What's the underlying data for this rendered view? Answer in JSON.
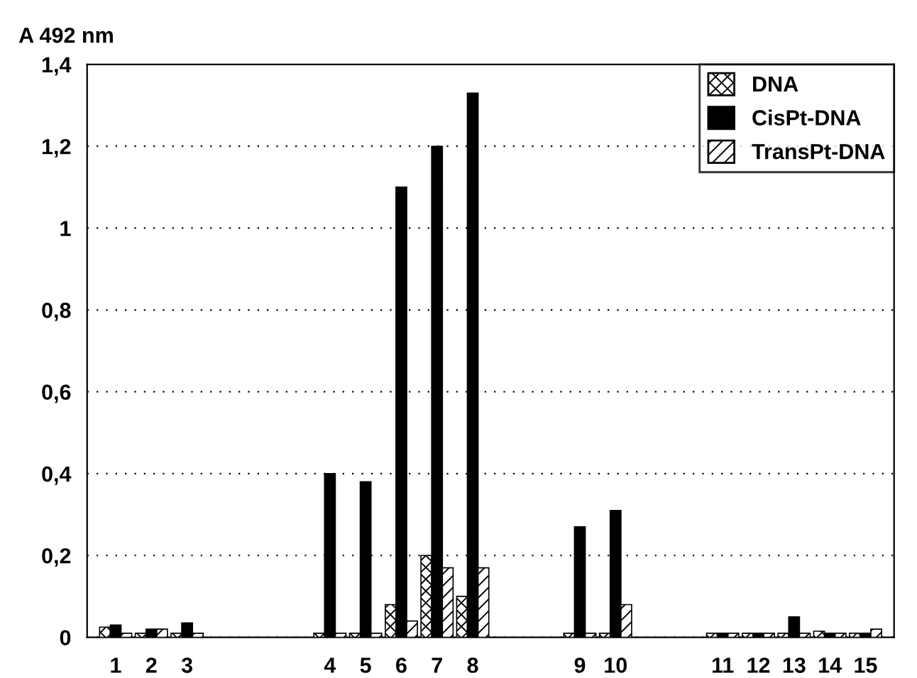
{
  "chart_data": {
    "type": "bar",
    "ylabel": "A 492 nm",
    "categories": [
      "1",
      "2",
      "3",
      null,
      null,
      null,
      "4",
      "5",
      "6",
      "7",
      "8",
      null,
      null,
      "9",
      "10",
      null,
      null,
      "11",
      "12",
      "13",
      "14",
      "15"
    ],
    "series": [
      {
        "name": "DNA",
        "color": "#ffffff",
        "values": [
          0.025,
          0.01,
          0.01,
          null,
          null,
          null,
          0.01,
          0.01,
          0.08,
          0.2,
          0.1,
          null,
          null,
          0.01,
          0.01,
          null,
          null,
          0.01,
          0.01,
          0.01,
          0.015,
          0.01
        ]
      },
      {
        "name": "CisPt-DNA",
        "color": "#000000",
        "values": [
          0.03,
          0.02,
          0.035,
          null,
          null,
          null,
          0.4,
          0.38,
          1.1,
          1.2,
          1.33,
          null,
          null,
          0.27,
          0.31,
          null,
          null,
          0.01,
          0.01,
          0.05,
          0.01,
          0.01
        ]
      },
      {
        "name": "TransPt-DNA",
        "color": "#ffffff",
        "values": [
          0.01,
          0.02,
          0.01,
          null,
          null,
          null,
          0.01,
          0.01,
          0.04,
          0.17,
          0.17,
          null,
          null,
          0.01,
          0.08,
          null,
          null,
          0.01,
          0.01,
          0.01,
          0.01,
          0.02
        ]
      }
    ],
    "ylim": [
      0,
      1.4
    ],
    "yticks": [
      0,
      {
        "value": 0.2,
        "label": "0,2"
      },
      {
        "value": 0.4,
        "label": "0,4"
      },
      {
        "value": 0.6,
        "label": "0,6"
      },
      {
        "value": 0.8,
        "label": "0,8"
      },
      1,
      {
        "value": 1.2,
        "label": "1,2"
      },
      {
        "value": 1.4,
        "label": "1,4"
      }
    ],
    "grid": "y",
    "legend": "top right"
  }
}
